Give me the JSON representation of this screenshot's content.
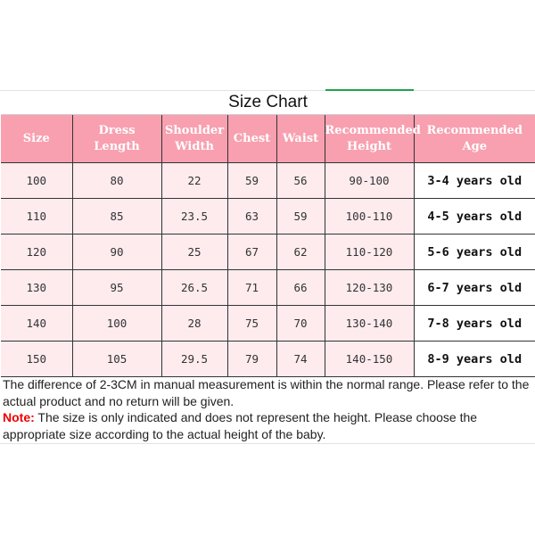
{
  "title": "Size Chart",
  "headers": [
    [
      "Size"
    ],
    [
      "Dress",
      "Length"
    ],
    [
      "Shoulder",
      "Width"
    ],
    [
      "Chest"
    ],
    [
      "Waist"
    ],
    [
      "Recommended",
      "Height"
    ],
    [
      "Recommended Age"
    ]
  ],
  "rows": [
    [
      "100",
      "80",
      "22",
      "59",
      "56",
      "90-100",
      "3-4 years old"
    ],
    [
      "110",
      "85",
      "23.5",
      "63",
      "59",
      "100-110",
      "4-5 years old"
    ],
    [
      "120",
      "90",
      "25",
      "67",
      "62",
      "110-120",
      "5-6 years old"
    ],
    [
      "130",
      "95",
      "26.5",
      "71",
      "66",
      "120-130",
      "6-7 years old"
    ],
    [
      "140",
      "100",
      "28",
      "75",
      "70",
      "130-140",
      "7-8 years old"
    ],
    [
      "150",
      "105",
      "29.5",
      "79",
      "74",
      "140-150",
      "8-9 years old"
    ]
  ],
  "notes": {
    "line1": "The difference of 2-3CM in manual measurement is within the normal range. Please refer to the actual product and no return will be given.",
    "note_label": "Note:",
    "note_text": " The size is only indicated and does not represent the height. Please choose the appropriate size according to the actual height of the baby."
  },
  "colors": {
    "header_bg": "#f8a0b0",
    "row_bg": "#fdebee",
    "note_label": "#ee0000"
  }
}
